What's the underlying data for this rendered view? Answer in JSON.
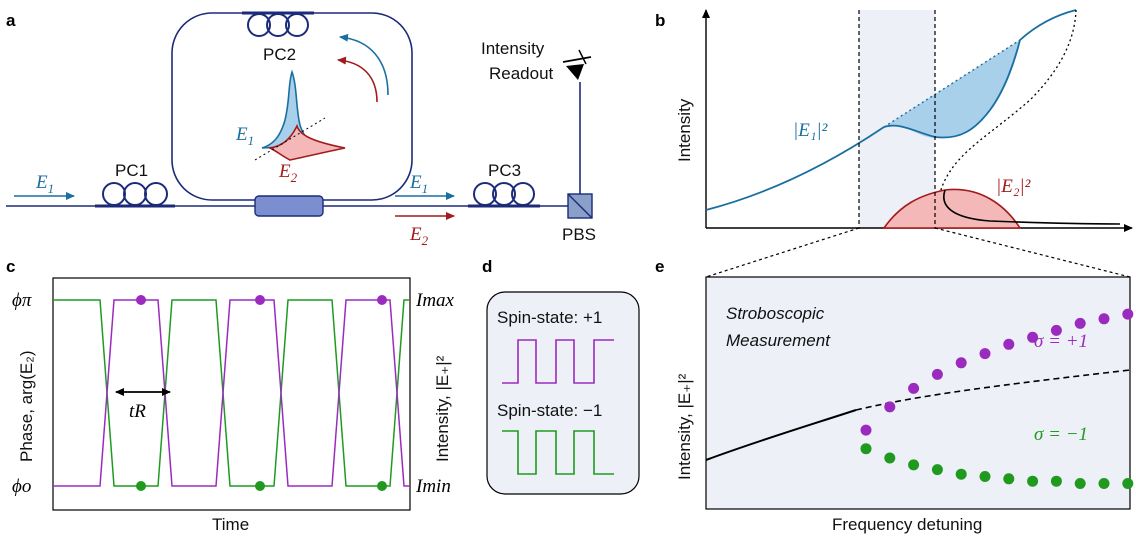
{
  "panels": {
    "a": "a",
    "b": "b",
    "c": "c",
    "d": "d",
    "e": "e"
  },
  "colors": {
    "blue": "#1a6fa0",
    "red": "#a11c1c",
    "purple": "#9b2bbf",
    "green": "#1f9a1f",
    "navy": "#1c2a7a"
  },
  "a": {
    "pc1": "PC1",
    "pc2": "PC2",
    "pc3": "PC3",
    "pbs": "PBS",
    "readout_line1": "Intensity",
    "readout_line2": "Readout",
    "e1_var": "E",
    "e1_sub": "1",
    "e2_var": "E",
    "e2_sub": "2"
  },
  "b": {
    "ylabel": "Intensity",
    "e1_label": "|E₁|²",
    "e2_label": "|E₂|²"
  },
  "c": {
    "xlabel": "Time",
    "ylabel_left": "Phase, arg(E₂)",
    "ylabel_right": "Intensity, |E₊|²",
    "phi_pi": "ϕπ",
    "phi_o": "ϕo",
    "i_max": "Imax",
    "i_min": "Imin",
    "t_r": "tR"
  },
  "d": {
    "spin_plus": "Spin-state: +1",
    "spin_minus": "Spin-state: −1"
  },
  "e": {
    "xlabel": "Frequency detuning",
    "ylabel": "Intensity, |E₊|²",
    "title_line1": "Stroboscopic",
    "title_line2": "Measurement",
    "sigma_plus": "σ = +1",
    "sigma_minus": "σ = −1"
  },
  "chart_data": {
    "type": "scatter",
    "xlabel": "Frequency detuning",
    "ylabel": "Intensity, |E₊|²",
    "series": [
      {
        "name": "σ = +1",
        "values": [
          0.34,
          0.44,
          0.52,
          0.58,
          0.63,
          0.67,
          0.71,
          0.74,
          0.77,
          0.8,
          0.82,
          0.84
        ]
      },
      {
        "name": "σ = −1",
        "values": [
          0.26,
          0.22,
          0.19,
          0.17,
          0.15,
          0.14,
          0.13,
          0.12,
          0.12,
          0.11,
          0.11,
          0.11
        ]
      }
    ]
  }
}
